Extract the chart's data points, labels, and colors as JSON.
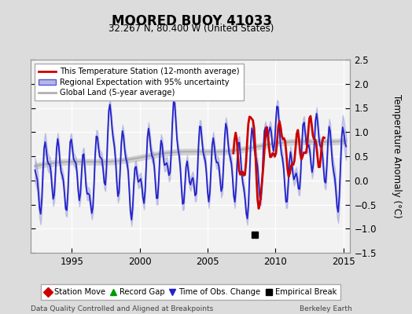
{
  "title": "MOORED BUOY 41033",
  "subtitle": "32.267 N, 80.400 W (United States)",
  "ylabel": "Temperature Anomaly (°C)",
  "footer_left": "Data Quality Controlled and Aligned at Breakpoints",
  "footer_right": "Berkeley Earth",
  "xlim": [
    1992.0,
    2015.5
  ],
  "ylim": [
    -1.5,
    2.5
  ],
  "yticks": [
    -1.5,
    -1.0,
    -0.5,
    0.0,
    0.5,
    1.0,
    1.5,
    2.0,
    2.5
  ],
  "xticks": [
    1995,
    2000,
    2005,
    2010,
    2015
  ],
  "bg_color": "#dcdcdc",
  "plot_bg_color": "#f2f2f2",
  "empirical_break_x": 2008.5,
  "empirical_break_y": -1.12,
  "legend_top_entries": [
    "This Temperature Station (12-month average)",
    "Regional Expectation with 95% uncertainty",
    "Global Land (5-year average)"
  ],
  "legend_bottom_entries": [
    "Station Move",
    "Record Gap",
    "Time of Obs. Change",
    "Empirical Break"
  ]
}
